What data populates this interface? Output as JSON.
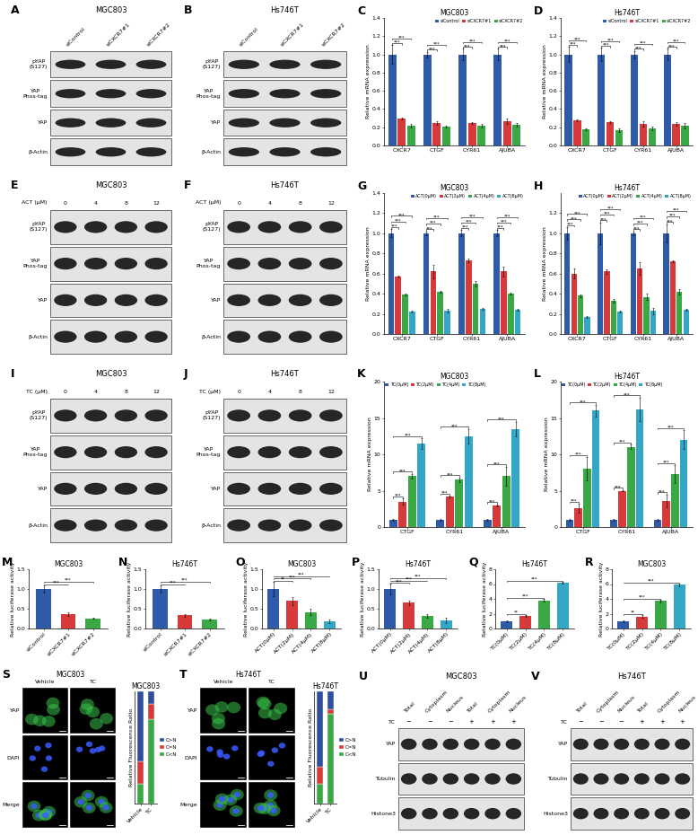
{
  "chart_data": [
    {
      "panel": "C",
      "type": "bar",
      "title": "MGC803",
      "y_label": "Relative mRNA expression",
      "categories": [
        "CXCR7",
        "CTGF",
        "CYR61",
        "AJUBA"
      ],
      "series": [
        {
          "name": "siControl",
          "color": "#2e5aa8",
          "values": [
            1.0,
            1.0,
            1.0,
            1.0
          ],
          "errors": [
            0.1,
            0.03,
            0.06,
            0.06
          ]
        },
        {
          "name": "siCXCR7#1",
          "color": "#d63a3a",
          "values": [
            0.3,
            0.25,
            0.25,
            0.27
          ],
          "errors": [
            0.01,
            0.02,
            0.01,
            0.03
          ],
          "significance": [
            "***",
            "***",
            "***",
            "***"
          ]
        },
        {
          "name": "siCXCR7#2",
          "color": "#3aa845",
          "values": [
            0.22,
            0.21,
            0.22,
            0.23
          ],
          "errors": [
            0.02,
            0.01,
            0.02,
            0.02
          ],
          "significance": [
            "***",
            "***",
            "***",
            "***"
          ]
        }
      ],
      "ylim": [
        0,
        1.4
      ],
      "yticks": [
        0.0,
        0.2,
        0.4,
        0.6,
        0.8,
        1.0,
        1.2,
        1.4
      ],
      "legend": "upper right"
    },
    {
      "panel": "D",
      "type": "bar",
      "title": "Hs746T",
      "y_label": "Relative mRNA expression",
      "categories": [
        "CXCR7",
        "CTGF",
        "CYR61",
        "AJUBA"
      ],
      "series": [
        {
          "name": "siControl",
          "color": "#2e5aa8",
          "values": [
            1.0,
            1.0,
            1.0,
            1.0
          ],
          "errors": [
            0.08,
            0.07,
            0.04,
            0.06
          ]
        },
        {
          "name": "siCXCR7#1",
          "color": "#d63a3a",
          "values": [
            0.28,
            0.26,
            0.24,
            0.24
          ],
          "errors": [
            0.01,
            0.01,
            0.03,
            0.02
          ],
          "significance": [
            "***",
            "***",
            "***",
            "***"
          ]
        },
        {
          "name": "siCXCR7#2",
          "color": "#3aa845",
          "values": [
            0.18,
            0.17,
            0.19,
            0.22
          ],
          "errors": [
            0.01,
            0.02,
            0.02,
            0.03
          ],
          "significance": [
            "***",
            "***",
            "***",
            "***"
          ]
        }
      ],
      "ylim": [
        0,
        1.4
      ],
      "yticks": [
        0.0,
        0.2,
        0.4,
        0.6,
        0.8,
        1.0,
        1.2,
        1.4
      ],
      "legend": "upper right"
    },
    {
      "panel": "G",
      "type": "bar",
      "title": "MGC803",
      "y_label": "Relative mRNA expression",
      "categories": [
        "CXCR7",
        "CTGF",
        "CYR61",
        "AJUBA"
      ],
      "series": [
        {
          "name": "ACT(0μM)",
          "color": "#2e5aa8",
          "values": [
            1.0,
            1.0,
            1.0,
            1.0
          ],
          "errors": [
            0.04,
            0.02,
            0.03,
            0.03
          ]
        },
        {
          "name": "ACT(2μM)",
          "color": "#d63a3a",
          "values": [
            0.57,
            0.62,
            0.73,
            0.62
          ],
          "errors": [
            0.01,
            0.07,
            0.02,
            0.05
          ],
          "significance": [
            "***",
            "***",
            "***",
            "***"
          ]
        },
        {
          "name": "ACT(4μM)",
          "color": "#3aa845",
          "values": [
            0.39,
            0.42,
            0.5,
            0.4
          ],
          "errors": [
            0.01,
            0.01,
            0.03,
            0.01
          ],
          "significance": [
            "***",
            "***",
            "***",
            "***"
          ]
        },
        {
          "name": "ACT(8μM)",
          "color": "#35a7c6",
          "values": [
            0.22,
            0.23,
            0.25,
            0.24
          ],
          "errors": [
            0.01,
            0.02,
            0.01,
            0.01
          ],
          "significance": [
            "***",
            "***",
            "***",
            "***"
          ]
        }
      ],
      "ylim": [
        0,
        1.4
      ],
      "yticks": [
        0.0,
        0.2,
        0.4,
        0.6,
        0.8,
        1.0,
        1.2,
        1.4
      ],
      "legend": "upper right"
    },
    {
      "panel": "H",
      "type": "bar",
      "title": "Hs746T",
      "y_label": "Relative mRNA expression",
      "categories": [
        "CXCR7",
        "CTGF",
        "CYR61",
        "AJUBA"
      ],
      "series": [
        {
          "name": "ACT(0μM)",
          "color": "#2e5aa8",
          "values": [
            1.0,
            1.0,
            1.0,
            1.0
          ],
          "errors": [
            0.06,
            0.11,
            0.02,
            0.09
          ]
        },
        {
          "name": "ACT(2μM)",
          "color": "#d63a3a",
          "values": [
            0.6,
            0.62,
            0.65,
            0.72
          ],
          "errors": [
            0.05,
            0.02,
            0.06,
            0.01
          ],
          "significance": [
            "***",
            "***",
            "***",
            "***"
          ]
        },
        {
          "name": "ACT(4μM)",
          "color": "#3aa845",
          "values": [
            0.38,
            0.33,
            0.37,
            0.42
          ],
          "errors": [
            0.01,
            0.02,
            0.03,
            0.03
          ],
          "significance": [
            "***",
            "***",
            "***",
            "***"
          ]
        },
        {
          "name": "ACT(8μM)",
          "color": "#35a7c6",
          "values": [
            0.17,
            0.22,
            0.23,
            0.24
          ],
          "errors": [
            0.01,
            0.01,
            0.03,
            0.01
          ],
          "significance": [
            "***",
            "***",
            "***",
            "***"
          ]
        }
      ],
      "ylim": [
        0,
        1.4
      ],
      "yticks": [
        0.0,
        0.2,
        0.4,
        0.6,
        0.8,
        1.0,
        1.2
      ],
      "legend": "upper right"
    },
    {
      "panel": "K",
      "type": "bar",
      "title": "MGC803",
      "y_label": "Relative mRNA expression",
      "categories": [
        "CTGF",
        "CYR61",
        "AJUBA"
      ],
      "series": [
        {
          "name": "TC(0μM)",
          "color": "#2e5aa8",
          "values": [
            1.0,
            1.0,
            1.0
          ],
          "errors": [
            0.1,
            0.1,
            0.1
          ]
        },
        {
          "name": "TC(2μM)",
          "color": "#d63a3a",
          "values": [
            3.5,
            4.2,
            3.0
          ],
          "errors": [
            0.4,
            0.1,
            0.1
          ],
          "significance": [
            "***",
            "***",
            "***"
          ]
        },
        {
          "name": "TC(4μM)",
          "color": "#3aa845",
          "values": [
            7.0,
            6.5,
            7.0
          ],
          "errors": [
            0.3,
            0.3,
            1.3
          ],
          "significance": [
            "***",
            "***",
            "***"
          ]
        },
        {
          "name": "TC(8μM)",
          "color": "#35a7c6",
          "values": [
            11.5,
            12.5,
            13.5
          ],
          "errors": [
            0.7,
            1.0,
            1.0
          ],
          "significance": [
            "***",
            "***",
            "***"
          ]
        }
      ],
      "ylim": [
        0,
        20
      ],
      "yticks": [
        0,
        5,
        10,
        15,
        20
      ],
      "legend": "upper left"
    },
    {
      "panel": "L",
      "type": "bar",
      "title": "Hs746T",
      "y_label": "Relative mRNA expression",
      "categories": [
        "CTGF",
        "CYR61",
        "AJUBA"
      ],
      "series": [
        {
          "name": "TC(0μM)",
          "color": "#2e5aa8",
          "values": [
            1.0,
            1.0,
            1.0
          ],
          "errors": [
            0.1,
            0.1,
            0.1
          ]
        },
        {
          "name": "TC(2μM)",
          "color": "#d63a3a",
          "values": [
            2.6,
            5.0,
            3.6
          ],
          "errors": [
            0.6,
            0.1,
            0.9
          ],
          "significance": [
            "***",
            "***",
            "***"
          ]
        },
        {
          "name": "TC(4μM)",
          "color": "#3aa845",
          "values": [
            8.0,
            11.0,
            7.3
          ],
          "errors": [
            1.6,
            0.3,
            1.2
          ],
          "significance": [
            "***",
            "***",
            "***"
          ]
        },
        {
          "name": "TC(8μM)",
          "color": "#35a7c6",
          "values": [
            16.0,
            16.2,
            12.0
          ],
          "errors": [
            0.8,
            1.6,
            1.3
          ],
          "significance": [
            "***",
            "***",
            "***"
          ]
        }
      ],
      "ylim": [
        0,
        20
      ],
      "yticks": [
        0,
        5,
        10,
        15,
        20
      ],
      "legend": "upper left"
    },
    {
      "panel": "M",
      "type": "bar",
      "title": "MGC803",
      "y_label": "Relative luciferase activity",
      "categories": [
        "siControl",
        "siCXCR7#1",
        "siCXCR7#2"
      ],
      "values": [
        1.0,
        0.37,
        0.26
      ],
      "errors": [
        0.1,
        0.05,
        0.02
      ],
      "colors": [
        "#2e5aa8",
        "#d63a3a",
        "#3aa845"
      ],
      "significance": [
        null,
        "***",
        "***"
      ],
      "ylim": [
        0,
        1.5
      ],
      "yticks": [
        0.0,
        0.5,
        1.0,
        1.5
      ]
    },
    {
      "panel": "N",
      "type": "bar",
      "title": "Hs746T",
      "y_label": "Relative luciferase activity",
      "categories": [
        "siControl",
        "siCXCR7#1",
        "siCXCR7#2"
      ],
      "values": [
        1.0,
        0.33,
        0.22
      ],
      "errors": [
        0.1,
        0.03,
        0.02
      ],
      "colors": [
        "#2e5aa8",
        "#d63a3a",
        "#3aa845"
      ],
      "significance": [
        null,
        "***",
        "***"
      ],
      "ylim": [
        0,
        1.5
      ],
      "yticks": [
        0.0,
        0.5,
        1.0,
        1.5
      ]
    },
    {
      "panel": "O",
      "type": "bar",
      "title": "MGC803",
      "y_label": "Relative luciferase activity",
      "categories": [
        "ACT(0μM)",
        "ACT(2μM)",
        "ACT(4μM)",
        "ACT(8μM)"
      ],
      "values": [
        1.0,
        0.7,
        0.42,
        0.18
      ],
      "errors": [
        0.18,
        0.1,
        0.07,
        0.04
      ],
      "colors": [
        "#2e5aa8",
        "#d63a3a",
        "#3aa845",
        "#35a7c6"
      ],
      "significance": [
        null,
        "**",
        "***",
        "***"
      ],
      "ylim": [
        0,
        1.5
      ],
      "yticks": [
        0.0,
        0.5,
        1.0,
        1.5
      ]
    },
    {
      "panel": "P",
      "type": "bar",
      "title": "Hs746T",
      "y_label": "Relative luciferase activity",
      "categories": [
        "ACT(0μM)",
        "ACT(2μM)",
        "ACT(4μM)",
        "ACT(8μM)"
      ],
      "values": [
        1.0,
        0.65,
        0.32,
        0.2
      ],
      "errors": [
        0.13,
        0.06,
        0.05,
        0.07
      ],
      "colors": [
        "#2e5aa8",
        "#d63a3a",
        "#3aa845",
        "#35a7c6"
      ],
      "significance": [
        null,
        "***",
        "***",
        "***"
      ],
      "ylim": [
        0,
        1.5
      ],
      "yticks": [
        0.0,
        0.5,
        1.0,
        1.5
      ]
    },
    {
      "panel": "Q",
      "type": "bar",
      "title": "Hs746T",
      "y_label": "Relative luciferase activity",
      "categories": [
        "TC(0μM)",
        "TC(2μM)",
        "TC(4μM)",
        "TC(8μM)"
      ],
      "values": [
        1.0,
        1.7,
        3.8,
        6.2
      ],
      "errors": [
        0.15,
        0.1,
        0.2,
        0.1
      ],
      "colors": [
        "#2e5aa8",
        "#d63a3a",
        "#3aa845",
        "#35a7c6"
      ],
      "significance": [
        null,
        "**",
        "***",
        "***"
      ],
      "ylim": [
        0,
        8
      ],
      "yticks": [
        0,
        2,
        4,
        6,
        8
      ]
    },
    {
      "panel": "R",
      "type": "bar",
      "title": "MGC803",
      "y_label": "Relative luciferase activity",
      "categories": [
        "TC(0μM)",
        "TC(2μM)",
        "TC(4μM)",
        "TC(8μM)"
      ],
      "values": [
        1.0,
        1.6,
        3.7,
        5.9
      ],
      "errors": [
        0.15,
        0.2,
        0.15,
        0.2
      ],
      "colors": [
        "#2e5aa8",
        "#d63a3a",
        "#3aa845",
        "#35a7c6"
      ],
      "significance": [
        null,
        "**",
        "***",
        "***"
      ],
      "ylim": [
        0,
        8
      ],
      "yticks": [
        0,
        2,
        4,
        6,
        8
      ]
    },
    {
      "type": "bar",
      "stacked": true,
      "title": "MGC803",
      "y_label": "Relative Fluorescence Ratio",
      "categories": [
        "Vehicle",
        "TC"
      ],
      "series": [
        {
          "name": "C>N",
          "color": "#2e4f9f",
          "values": [
            62,
            11
          ]
        },
        {
          "name": "C=N",
          "color": "#d63a3a",
          "values": [
            20,
            14
          ]
        },
        {
          "name": "C<N",
          "color": "#3aa845",
          "values": [
            18,
            75
          ]
        }
      ],
      "ylim": [
        0,
        100
      ],
      "tick_labels": "x",
      "legend": "right"
    },
    {
      "type": "bar",
      "stacked": true,
      "title": "Hs746T",
      "y_label": "Relative Fluorescence Ratio",
      "categories": [
        "Vehicle",
        "TC"
      ],
      "series": [
        {
          "name": "C>N",
          "color": "#2e4f9f",
          "values": [
            67,
            16
          ]
        },
        {
          "name": "C=N",
          "color": "#d63a3a",
          "values": [
            15,
            4
          ]
        },
        {
          "name": "C<N",
          "color": "#3aa845",
          "values": [
            18,
            80
          ]
        }
      ],
      "ylim": [
        0,
        100
      ],
      "tick_labels": "x",
      "legend": "right"
    }
  ],
  "blots": [
    {
      "panel": "A",
      "title": "MGC803",
      "lanes": [
        "siControl",
        "siCXCR7#1",
        "siCXCR7#2"
      ],
      "rows": [
        "pYAP\n(S127)",
        "YAP\nPhos-tag",
        "YAP",
        "β-Actin"
      ]
    },
    {
      "panel": "B",
      "title": "Hs746T",
      "lanes": [
        "siControl",
        "siCXCR7#1",
        "siCXCR7#2"
      ],
      "rows": [
        "pYAP\n(S127)",
        "YAP\nPhos-tag",
        "YAP",
        "β-Actin"
      ]
    },
    {
      "panel": "E",
      "title": "MGC803",
      "lane_title": "ACT (μM)",
      "lanes": [
        "0",
        "4",
        "8",
        "12"
      ],
      "rows": [
        "pYAP\n(S127)",
        "YAP\nPhos-tag",
        "YAP",
        "β-Actin"
      ]
    },
    {
      "panel": "F",
      "title": "Hs746T",
      "lane_title": "ACT (μM)",
      "lanes": [
        "0",
        "4",
        "8",
        "12"
      ],
      "rows": [
        "pYAP\n(S127)",
        "YAP\nPhos-tag",
        "YAP",
        "β-Actin"
      ]
    },
    {
      "panel": "I",
      "title": "MGC803",
      "lane_title": "TC (μM)",
      "lanes": [
        "0",
        "4",
        "8",
        "12"
      ],
      "rows": [
        "pYAP\n(S127)",
        "YAP\nPhos-tag",
        "YAP",
        "β-Actin"
      ]
    },
    {
      "panel": "J",
      "title": "Hs746T",
      "lane_title": "TC (μM)",
      "lanes": [
        "0",
        "4",
        "8",
        "12"
      ],
      "rows": [
        "pYAP\n(S127)",
        "YAP\nPhos-tag",
        "YAP",
        "β-Actin"
      ]
    },
    {
      "panel": "U",
      "title": "MGC803",
      "lanes": [
        "Total",
        "Cytoplasm",
        "Nucleus",
        "Total",
        "Cytoplasm",
        "Nucleus"
      ],
      "treatment": {
        "label": "TC",
        "marks": [
          "−",
          "−",
          "−",
          "+",
          "+",
          "+"
        ]
      },
      "rows": [
        "YAP",
        "Tubulin",
        "Histone3"
      ]
    },
    {
      "panel": "V",
      "title": "Hs746T",
      "lanes": [
        "Total",
        "Cytoplasm",
        "Nucleus",
        "Total",
        "Cytoplasm",
        "Nucleus"
      ],
      "treatment": {
        "label": "TC",
        "marks": [
          "−",
          "−",
          "−",
          "+",
          "+",
          "+"
        ]
      },
      "rows": [
        "YAP",
        "Tubulin",
        "Histone3"
      ]
    }
  ],
  "images": [
    {
      "panel": "S",
      "title": "MGC803",
      "columns": [
        "Vehicle",
        "TC"
      ],
      "rows": [
        "YAP",
        "DAPI",
        "Merge"
      ]
    },
    {
      "panel": "T",
      "title": "Hs746T",
      "columns": [
        "Vehicle",
        "TC"
      ],
      "rows": [
        "YAP",
        "DAPI",
        "Merge"
      ]
    }
  ]
}
